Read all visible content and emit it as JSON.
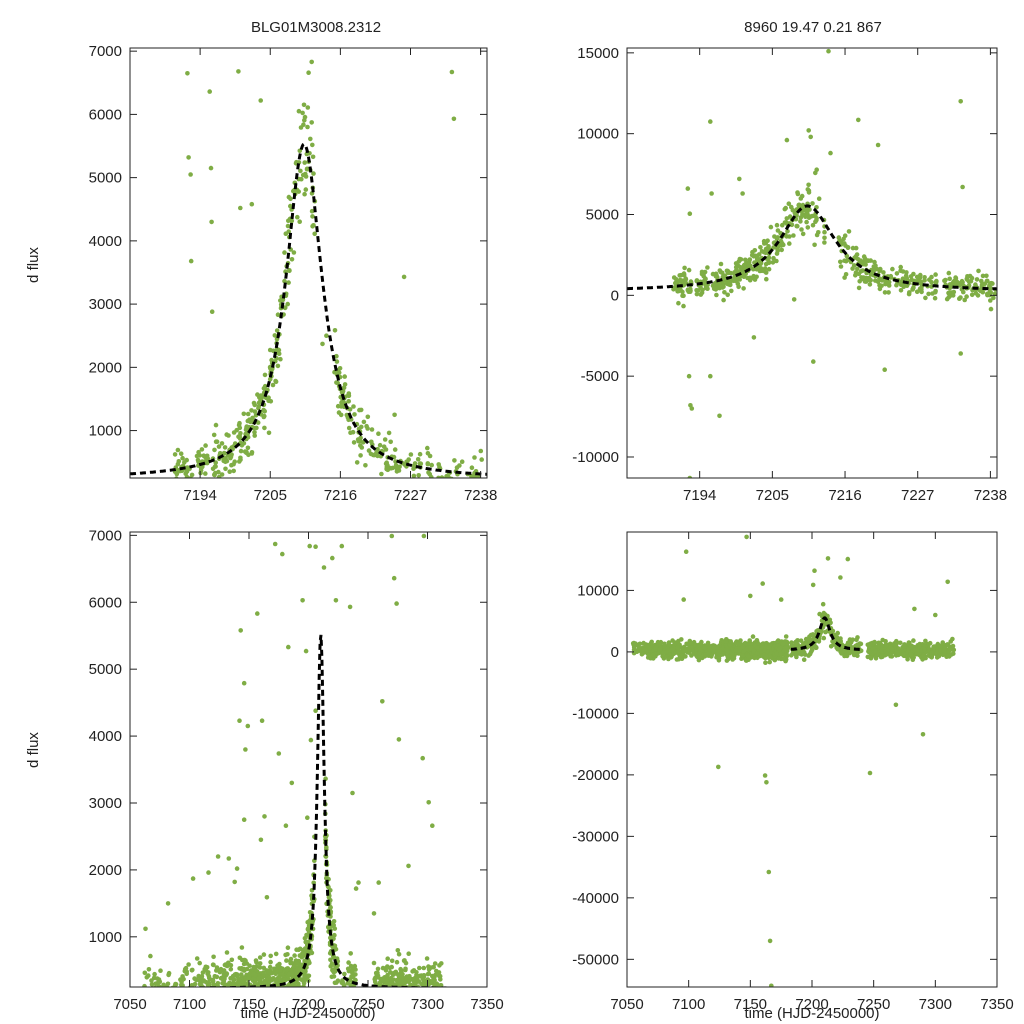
{
  "figure": {
    "title_left": "BLG01M3008.2312",
    "title_right": "8960  19.47  0.21  867",
    "y_axis_label": "d flux",
    "x_axis_label": "time (HJD-2450000)"
  },
  "colors": {
    "points": "#7fad45",
    "model": "#000000",
    "frame": "#222222"
  },
  "chart_data": [
    {
      "id": "top-left",
      "type": "scatter",
      "xlim": [
        7183,
        7239
      ],
      "ylim": [
        250,
        7050
      ],
      "xticks": [
        7194,
        7205,
        7216,
        7227,
        7238
      ],
      "yticks": [
        1000,
        2000,
        3000,
        4000,
        5000,
        6000,
        7000
      ],
      "ylabel": "d flux",
      "xlabel": "",
      "model": {
        "t0": 7210.3,
        "tE": 3.5,
        "A": 5300,
        "base": 230
      },
      "outliers": [
        [
          7192,
          6650
        ],
        [
          7192.2,
          5320
        ],
        [
          7192.5,
          5050
        ],
        [
          7192.6,
          3680
        ],
        [
          7195.5,
          6360
        ],
        [
          7195.7,
          5150
        ],
        [
          7195.8,
          4300
        ],
        [
          7195.9,
          2880
        ],
        [
          7200,
          6680
        ],
        [
          7200.3,
          4520
        ],
        [
          7202.1,
          4580
        ],
        [
          7203.5,
          6220
        ],
        [
          7211.5,
          6830
        ],
        [
          7209.5,
          6050
        ],
        [
          7213.2,
          2370
        ],
        [
          7213.8,
          2500
        ],
        [
          7226,
          3430
        ],
        [
          7233.5,
          6670
        ],
        [
          7233.8,
          5930
        ],
        [
          7224.5,
          1250
        ]
      ],
      "clusters": [
        [
          7190,
          7192.8,
          40
        ],
        [
          7193.5,
          7195.2,
          25
        ],
        [
          7196,
          7200.5,
          70
        ],
        [
          7200.5,
          7204,
          55
        ],
        [
          7204,
          7206,
          40
        ],
        [
          7206,
          7210.5,
          70
        ],
        [
          7210.5,
          7212,
          25
        ],
        [
          7215,
          7219,
          55
        ],
        [
          7219,
          7226,
          60
        ],
        [
          7226,
          7232,
          40
        ],
        [
          7232,
          7239,
          25
        ]
      ]
    },
    {
      "id": "top-right",
      "type": "scatter",
      "xlim": [
        7183,
        7239
      ],
      "ylim": [
        -11300,
        15300
      ],
      "xticks": [
        7194,
        7205,
        7216,
        7227,
        7238
      ],
      "yticks": [
        -10000,
        -5000,
        0,
        5000,
        10000,
        15000
      ],
      "ylabel": "",
      "xlabel": "",
      "model": {
        "t0": 7210.3,
        "tE": 5.2,
        "A": 5300,
        "base": 230
      },
      "outliers": [
        [
          7192.2,
          6600
        ],
        [
          7192.5,
          5050
        ],
        [
          7192.4,
          -5000
        ],
        [
          7192.6,
          -6800
        ],
        [
          7192.8,
          -7000
        ],
        [
          7192.5,
          -11300
        ],
        [
          7195.6,
          10750
        ],
        [
          7195.8,
          6300
        ],
        [
          7195.6,
          -5000
        ],
        [
          7197,
          -7450
        ],
        [
          7200,
          7200
        ],
        [
          7200.5,
          6300
        ],
        [
          7202.2,
          -2600
        ],
        [
          7207.2,
          9600
        ],
        [
          7208.3,
          -250
        ],
        [
          7210.5,
          10200
        ],
        [
          7210.8,
          9800
        ],
        [
          7211.2,
          -4100
        ],
        [
          7213.5,
          15100
        ],
        [
          7213.8,
          8800
        ],
        [
          7218,
          10850
        ],
        [
          7221,
          9300
        ],
        [
          7222,
          -4600
        ],
        [
          7233.5,
          12000
        ],
        [
          7233.8,
          6700
        ],
        [
          7233.5,
          -3600
        ]
      ],
      "clusters": [
        [
          7190,
          7192.8,
          50
        ],
        [
          7193.5,
          7195.2,
          30
        ],
        [
          7196,
          7201,
          90
        ],
        [
          7201,
          7206,
          90
        ],
        [
          7206,
          7211,
          80
        ],
        [
          7211,
          7213,
          20
        ],
        [
          7215,
          7222,
          90
        ],
        [
          7222,
          7230,
          80
        ],
        [
          7231,
          7239,
          90
        ]
      ]
    },
    {
      "id": "bottom-left",
      "type": "scatter",
      "xlim": [
        7050,
        7350
      ],
      "ylim": [
        250,
        7050
      ],
      "xticks": [
        7050,
        7100,
        7150,
        7200,
        7250,
        7300,
        7350
      ],
      "yticks": [
        1000,
        2000,
        3000,
        4000,
        5000,
        6000,
        7000
      ],
      "ylabel": "d flux",
      "xlabel": "time (HJD-2450000)",
      "model": {
        "t0": 7210.3,
        "tE": 3.5,
        "A": 5300,
        "base": 230
      },
      "outliers": [
        [
          7063,
          1120
        ],
        [
          7082,
          1500
        ],
        [
          7103,
          1870
        ],
        [
          7116,
          1960
        ],
        [
          7124,
          2200
        ],
        [
          7133,
          2170
        ],
        [
          7138,
          1820
        ],
        [
          7140,
          2020
        ],
        [
          7142,
          4230
        ],
        [
          7143,
          5580
        ],
        [
          7146,
          4790
        ],
        [
          7146,
          2750
        ],
        [
          7147,
          3800
        ],
        [
          7149,
          4150
        ],
        [
          7157,
          5830
        ],
        [
          7160,
          2450
        ],
        [
          7161,
          4230
        ],
        [
          7163,
          2800
        ],
        [
          7165,
          1590
        ],
        [
          7172,
          6870
        ],
        [
          7175,
          3740
        ],
        [
          7178,
          6720
        ],
        [
          7181,
          2660
        ],
        [
          7183,
          5330
        ],
        [
          7186,
          3300
        ],
        [
          7195,
          6030
        ],
        [
          7198,
          5270
        ],
        [
          7199,
          2780
        ],
        [
          7201,
          6840
        ],
        [
          7202,
          3940
        ],
        [
          7206,
          6830
        ],
        [
          7206,
          4380
        ],
        [
          7213,
          6520
        ],
        [
          7220,
          6660
        ],
        [
          7223,
          6030
        ],
        [
          7228,
          6840
        ],
        [
          7235,
          5930
        ],
        [
          7237,
          3150
        ],
        [
          7240,
          1720
        ],
        [
          7242,
          1810
        ],
        [
          7255,
          1350
        ],
        [
          7259,
          1810
        ],
        [
          7262,
          4520
        ],
        [
          7270,
          6990
        ],
        [
          7272,
          6360
        ],
        [
          7274,
          5980
        ],
        [
          7276,
          3950
        ],
        [
          7284,
          2060
        ],
        [
          7297,
          6990
        ],
        [
          7296,
          3670
        ],
        [
          7301,
          3010
        ],
        [
          7304,
          2660
        ]
      ],
      "clusters": [
        [
          7060,
          7110,
          120
        ],
        [
          7110,
          7140,
          160
        ],
        [
          7140,
          7172,
          300
        ],
        [
          7172,
          7190,
          200
        ],
        [
          7190,
          7205,
          150
        ],
        [
          7214,
          7225,
          120
        ],
        [
          7228,
          7240,
          60
        ],
        [
          7255,
          7282,
          220
        ],
        [
          7282,
          7312,
          160
        ]
      ]
    },
    {
      "id": "bottom-right",
      "type": "scatter",
      "xlim": [
        7050,
        7350
      ],
      "ylim": [
        -54500,
        19500
      ],
      "xticks": [
        7050,
        7100,
        7150,
        7200,
        7250,
        7300,
        7350
      ],
      "yticks": [
        -50000,
        -40000,
        -30000,
        -20000,
        -10000,
        0,
        10000
      ],
      "ylabel": "",
      "xlabel": "time (HJD-2450000)",
      "model": {
        "t0": 7210.3,
        "tE": 5.2,
        "A": 5300,
        "base": 230,
        "range": [
          7183,
          7239
        ]
      },
      "outliers": [
        [
          7098,
          16300
        ],
        [
          7096,
          8500
        ],
        [
          7124,
          -18700
        ],
        [
          7147,
          18700
        ],
        [
          7150,
          9100
        ],
        [
          7160,
          11100
        ],
        [
          7162,
          -20100
        ],
        [
          7163,
          -21200
        ],
        [
          7165,
          -35800
        ],
        [
          7166,
          -47000
        ],
        [
          7167,
          -54300
        ],
        [
          7167,
          19800
        ],
        [
          7175,
          8500
        ],
        [
          7201,
          10900
        ],
        [
          7202,
          13200
        ],
        [
          7213,
          15200
        ],
        [
          7223,
          12100
        ],
        [
          7229,
          15100
        ],
        [
          7247,
          -19700
        ],
        [
          7283,
          7000
        ],
        [
          7290,
          -13400
        ],
        [
          7300,
          6000
        ],
        [
          7310,
          11400
        ],
        [
          7268,
          -8600
        ]
      ],
      "clusters": [
        [
          7055,
          7090,
          160
        ],
        [
          7090,
          7108,
          60
        ],
        [
          7108,
          7130,
          120
        ],
        [
          7130,
          7180,
          500
        ],
        [
          7183,
          7212,
          120
        ],
        [
          7212,
          7240,
          120
        ],
        [
          7245,
          7280,
          160
        ],
        [
          7280,
          7315,
          160
        ]
      ]
    }
  ]
}
